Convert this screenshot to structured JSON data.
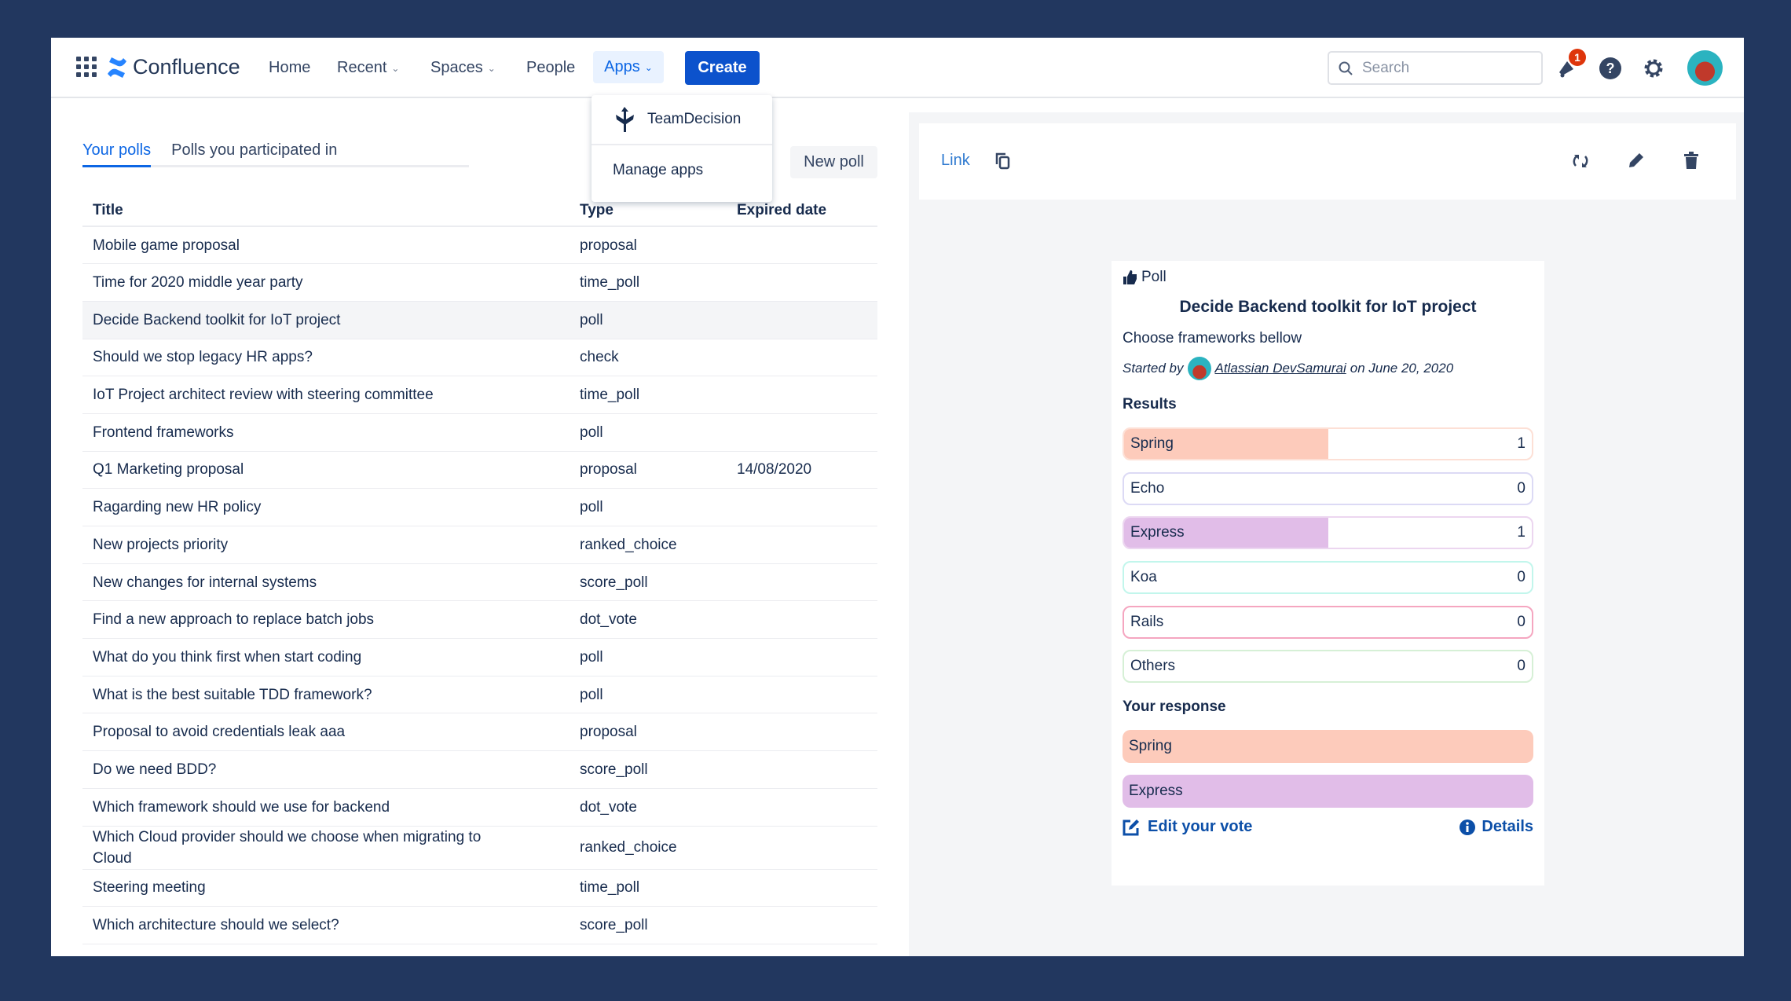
{
  "header": {
    "logo": "Confluence",
    "nav": [
      "Home",
      "Recent",
      "Spaces",
      "People",
      "Apps"
    ],
    "create": "Create",
    "search_placeholder": "Search",
    "notification_count": "1"
  },
  "apps_menu": [
    "TeamDecision",
    "Manage apps"
  ],
  "left": {
    "tabs": [
      "Your polls",
      "Polls you participated in"
    ],
    "new_poll": "New poll",
    "columns": [
      "Title",
      "Type",
      "Expired date"
    ],
    "rows": [
      [
        "Mobile game proposal",
        "proposal",
        ""
      ],
      [
        "Time for 2020 middle year party",
        "time_poll",
        ""
      ],
      [
        "Decide Backend toolkit for IoT project",
        "poll",
        ""
      ],
      [
        "Should we stop legacy HR apps?",
        "check",
        ""
      ],
      [
        "IoT Project architect review with steering committee",
        "time_poll",
        ""
      ],
      [
        "Frontend frameworks",
        "poll",
        ""
      ],
      [
        "Q1 Marketing proposal",
        "proposal",
        "14/08/2020"
      ],
      [
        "Ragarding new HR policy",
        "poll",
        ""
      ],
      [
        "New projects priority",
        "ranked_choice",
        ""
      ],
      [
        "New changes for internal systems",
        "score_poll",
        ""
      ],
      [
        "Find a new approach to replace batch jobs",
        "dot_vote",
        ""
      ],
      [
        "What do you think first when start coding",
        "poll",
        ""
      ],
      [
        "What is the best suitable TDD framework?",
        "poll",
        ""
      ],
      [
        "Proposal to avoid credentials leak aaa",
        "proposal",
        ""
      ],
      [
        "Do we need BDD?",
        "score_poll",
        ""
      ],
      [
        "Which framework should we use for backend",
        "dot_vote",
        ""
      ],
      [
        "Which Cloud provider should we choose when migrating to Cloud",
        "ranked_choice",
        ""
      ],
      [
        "Steering meeting",
        "time_poll",
        ""
      ],
      [
        "Which architecture should we select?",
        "score_poll",
        ""
      ]
    ]
  },
  "detail": {
    "link": "Link",
    "poll_label": "Poll",
    "title": "Decide Backend toolkit for IoT project",
    "description": "Choose frameworks bellow",
    "started_by": "Started by",
    "author": "Atlassian DevSamurai",
    "date": "on June 20, 2020",
    "results_label": "Results",
    "results": [
      {
        "label": "Spring",
        "votes": "1",
        "fraction": 0.5,
        "fill": "#fdcbbb",
        "border": "#fde0d6"
      },
      {
        "label": "Echo",
        "votes": "0",
        "fraction": 0,
        "fill": "#dcdaf5",
        "border": "#dcdaf5"
      },
      {
        "label": "Express",
        "votes": "1",
        "fraction": 0.5,
        "fill": "#e1bde8",
        "border": "#ecd6f0"
      },
      {
        "label": "Koa",
        "votes": "0",
        "fraction": 0,
        "fill": "#c2f6ec",
        "border": "#c2f6ec"
      },
      {
        "label": "Rails",
        "votes": "0",
        "fraction": 0,
        "fill": "#f5a6c0",
        "border": "#f5a6c0"
      },
      {
        "label": "Others",
        "votes": "0",
        "fraction": 0,
        "fill": "#d6f0d6",
        "border": "#d6f0d6"
      }
    ],
    "your_response_label": "Your response",
    "responses": [
      {
        "label": "Spring",
        "color": "#fdcbbb"
      },
      {
        "label": "Express",
        "color": "#e1bde8"
      }
    ],
    "edit_vote": "Edit your vote",
    "details": "Details"
  }
}
